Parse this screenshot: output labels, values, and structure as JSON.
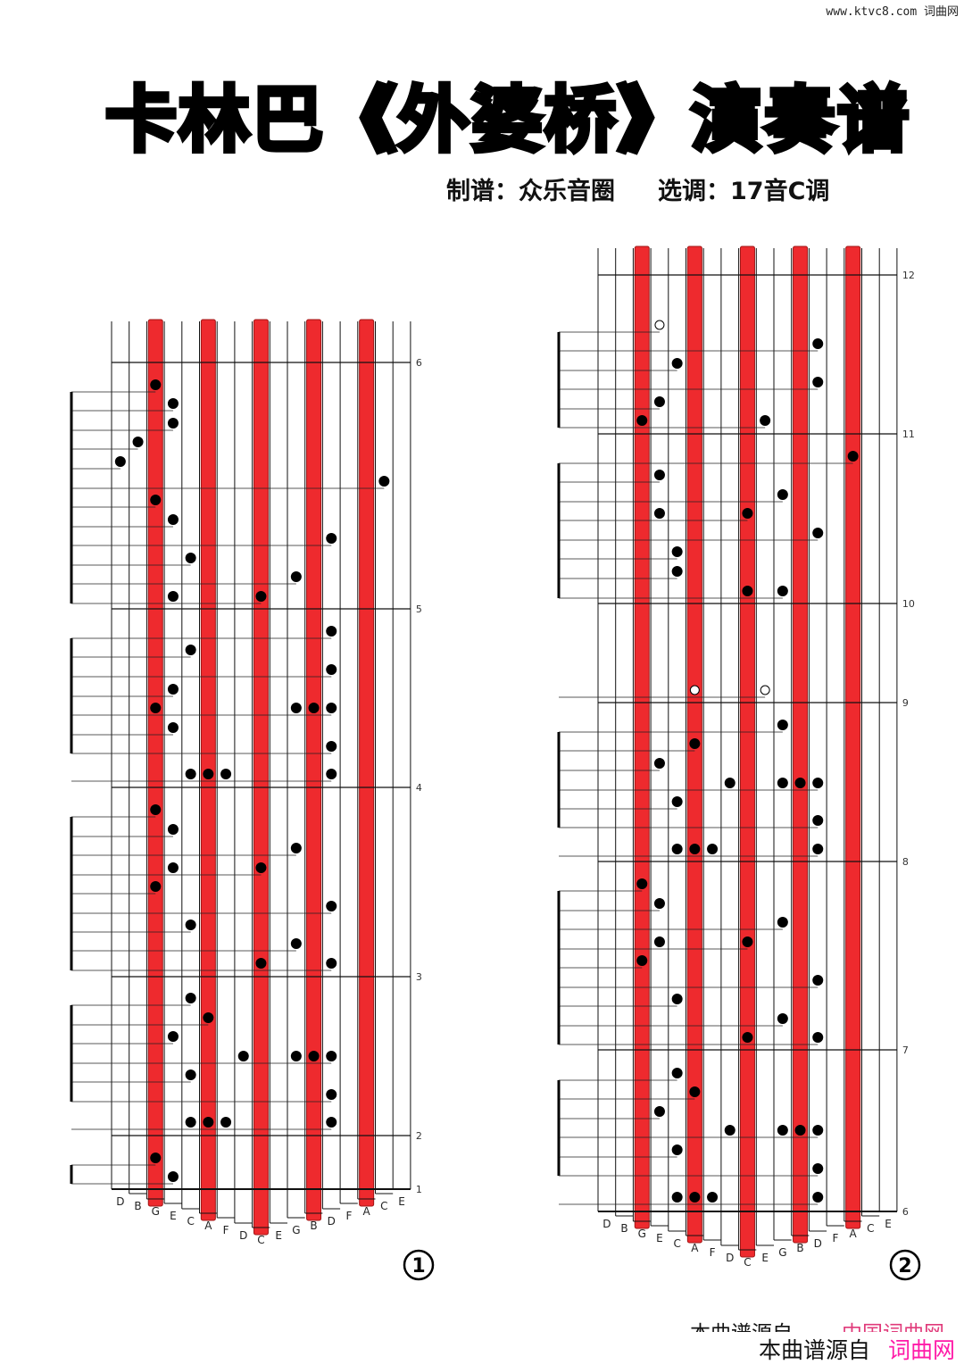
{
  "watermark": "www.ktvc8.com 词曲网",
  "title": "卡林巴《外婆桥》演奏谱",
  "arranger": "制谱：众乐音圈",
  "key_choice": "选调：17音C调",
  "keys": [
    "D",
    "B",
    "G",
    "E",
    "C",
    "A",
    "F",
    "D",
    "C",
    "E",
    "G",
    "B",
    "D",
    "F",
    "A",
    "C",
    "E"
  ],
  "red_keys": [
    2,
    5,
    8,
    11,
    14
  ],
  "colors": {
    "red_key": "#ee2a2e",
    "dot": "#000000"
  },
  "panels": [
    {
      "number": "①",
      "measures": [
        "1",
        "2",
        "3",
        "4",
        "5",
        "6"
      ],
      "rows": [
        {
          "keys": [
            2
          ]
        },
        {
          "keys": [
            3
          ]
        },
        {
          "keys": [
            3
          ]
        },
        {
          "keys": [
            1
          ]
        },
        {
          "keys": [
            0
          ]
        },
        {
          "keys": [
            15
          ]
        },
        {
          "keys": [
            2
          ]
        },
        {
          "keys": [
            3
          ]
        },
        {
          "keys": [
            12
          ]
        },
        {
          "keys": [
            4
          ]
        },
        {
          "keys": [
            10
          ]
        },
        {
          "keys": [
            3,
            8
          ]
        },
        {
          "keys": [
            12
          ]
        },
        {
          "keys": [
            4
          ]
        },
        {
          "keys": [
            12
          ]
        },
        {
          "keys": [
            3
          ]
        },
        {
          "keys": [
            2,
            10,
            11,
            12
          ]
        },
        {
          "keys": [
            3
          ]
        },
        {
          "keys": [
            12
          ]
        },
        {
          "keys": [
            4,
            5,
            6,
            12
          ]
        },
        {
          "keys": [
            2
          ]
        },
        {
          "keys": [
            3
          ]
        },
        {
          "keys": [
            10
          ]
        },
        {
          "keys": [
            3,
            8
          ]
        },
        {
          "keys": [
            2
          ]
        },
        {
          "keys": [
            12
          ]
        },
        {
          "keys": [
            4
          ]
        },
        {
          "keys": [
            10
          ]
        },
        {
          "keys": [
            8,
            12
          ]
        },
        {
          "keys": [
            4
          ]
        },
        {
          "keys": [
            5
          ]
        },
        {
          "keys": [
            3
          ]
        },
        {
          "keys": [
            7,
            10,
            11,
            12
          ]
        },
        {
          "keys": [
            4
          ]
        },
        {
          "keys": [
            12
          ]
        },
        {
          "keys": [
            4,
            5,
            6,
            12
          ]
        },
        {
          "keys": [
            2
          ]
        },
        {
          "keys": [
            3
          ]
        }
      ]
    },
    {
      "number": "②",
      "measures": [
        "6",
        "7",
        "8",
        "9",
        "10",
        "11",
        "12"
      ],
      "rows": [
        {
          "keys": [
            3
          ],
          "open": true
        },
        {
          "keys": [
            12
          ]
        },
        {
          "keys": [
            4
          ]
        },
        {
          "keys": [
            12
          ]
        },
        {
          "keys": [
            3
          ]
        },
        {
          "keys": [
            2,
            9
          ]
        },
        {
          "keys": [
            14
          ]
        },
        {
          "keys": [
            3
          ]
        },
        {
          "keys": [
            10
          ]
        },
        {
          "keys": [
            3,
            8
          ]
        },
        {
          "keys": [
            12
          ]
        },
        {
          "keys": [
            4
          ]
        },
        {
          "keys": [
            4
          ]
        },
        {
          "keys": [
            8,
            10
          ]
        },
        {
          "keys": [
            5,
            9
          ],
          "open": true
        },
        {
          "keys": [
            10
          ]
        },
        {
          "keys": [
            5
          ]
        },
        {
          "keys": [
            3
          ]
        },
        {
          "keys": [
            7,
            10,
            11,
            12
          ]
        },
        {
          "keys": [
            4
          ]
        },
        {
          "keys": [
            12
          ]
        },
        {
          "keys": [
            4,
            5,
            6,
            12
          ]
        },
        {
          "keys": [
            2
          ]
        },
        {
          "keys": [
            3
          ]
        },
        {
          "keys": [
            10
          ]
        },
        {
          "keys": [
            3,
            8
          ]
        },
        {
          "keys": [
            2
          ]
        },
        {
          "keys": [
            12
          ]
        },
        {
          "keys": [
            4
          ]
        },
        {
          "keys": [
            10
          ]
        },
        {
          "keys": [
            8,
            12
          ]
        },
        {
          "keys": [
            4
          ]
        },
        {
          "keys": [
            5
          ]
        },
        {
          "keys": [
            3
          ]
        },
        {
          "keys": [
            7,
            10,
            11,
            12
          ]
        },
        {
          "keys": [
            4
          ]
        },
        {
          "keys": [
            12
          ]
        },
        {
          "keys": [
            4,
            5,
            6,
            12
          ]
        }
      ]
    }
  ],
  "footer": {
    "source_faded": "本曲谱源自",
    "site_faded": "中国词曲网",
    "source": "本曲谱源自",
    "site": "词曲网"
  }
}
